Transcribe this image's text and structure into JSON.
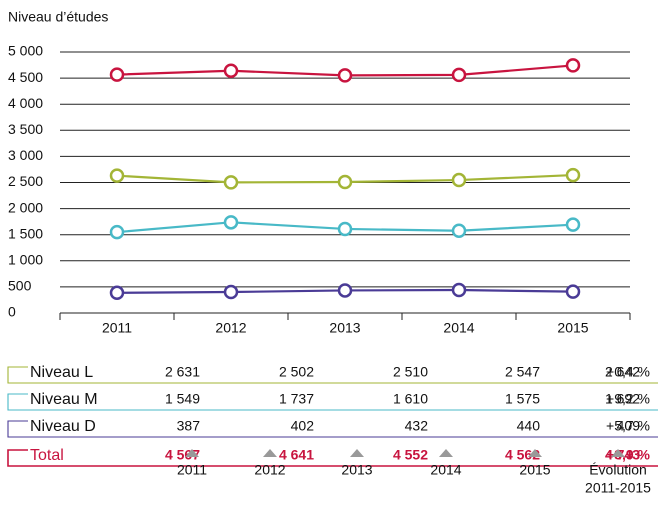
{
  "chart_data": {
    "type": "line",
    "title": "Niveau d’études",
    "categories": [
      "2011",
      "2012",
      "2013",
      "2014",
      "2015"
    ],
    "ylim": [
      0,
      5000
    ],
    "yticks": [
      0,
      500,
      {
        "value": 1000,
        "label": "1 000"
      },
      {
        "value": 1500,
        "label": "1 500"
      },
      {
        "value": 2000,
        "label": "2 000"
      },
      {
        "value": 2500,
        "label": "2 500"
      },
      {
        "value": 3000,
        "label": "3 000"
      },
      {
        "value": 3500,
        "label": "3 500"
      },
      {
        "value": 4000,
        "label": "4 000"
      },
      {
        "value": 4500,
        "label": "4 500"
      },
      {
        "value": 5000,
        "label": "5 000"
      }
    ],
    "grid": true,
    "evolution_header": [
      "Évolution",
      "2011-2015"
    ],
    "series": [
      {
        "name": "Niveau L",
        "color": "#a3b536",
        "values": [
          2631,
          2502,
          2510,
          2547,
          2642
        ],
        "value_labels": [
          "2 631",
          "2 502",
          "2 510",
          "2 547",
          "2 642"
        ],
        "evolution": "+0,4 %"
      },
      {
        "name": "Niveau M",
        "color": "#48b9c7",
        "values": [
          1549,
          1737,
          1610,
          1575,
          1692
        ],
        "value_labels": [
          "1 549",
          "1 737",
          "1 610",
          "1 575",
          "1 692"
        ],
        "evolution": "+9,2 %"
      },
      {
        "name": "Niveau D",
        "color": "#4a3b96",
        "values": [
          387,
          402,
          432,
          440,
          409
        ],
        "value_labels": [
          "387",
          "402",
          "432",
          "440",
          "409"
        ],
        "evolution": "+5,7 %"
      },
      {
        "name": "Total",
        "color": "#c8143f",
        "values": [
          4567,
          4641,
          4552,
          4562,
          4743
        ],
        "value_labels": [
          "4 567",
          "4 641",
          "4 552",
          "4 562",
          "4 743"
        ],
        "evolution": "+3,9 %",
        "bold": true
      }
    ]
  }
}
